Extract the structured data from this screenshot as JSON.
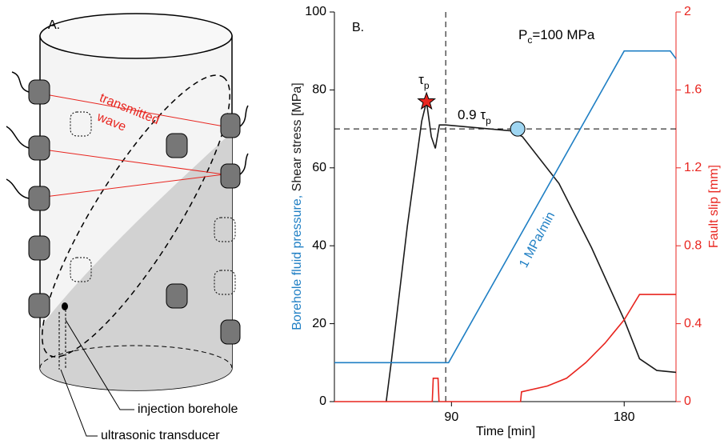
{
  "diagram": {
    "panel_label": "A.",
    "wave_label": [
      "transmitted",
      "wave"
    ],
    "borehole_label": "injection borehole",
    "transducer_label": "ultrasonic transducer"
  },
  "chart_data": {
    "type": "line",
    "panel_label": "B.",
    "x_label": "Time [min]",
    "y_label_parts": [
      {
        "text": "Borehole fluid pressure,",
        "color": "#1f7fc4"
      },
      {
        "text": "Shear stress [MPa]",
        "color": "#1a1a1a"
      }
    ],
    "y2_label": "Fault slip [mm]",
    "y2_color": "#e8251f",
    "xlim": [
      29,
      207
    ],
    "xticks": [
      90,
      180
    ],
    "ylim": [
      0,
      100
    ],
    "yticks": [
      0,
      20,
      40,
      60,
      80,
      100
    ],
    "y2lim": [
      0,
      2
    ],
    "y2ticks": [
      0,
      0.4,
      0.8,
      1.2,
      1.6,
      2
    ],
    "series": [
      {
        "name": "Shear stress",
        "color": "#1a1a1a",
        "x": [
          56,
          58.6,
          67,
          74.5,
          77,
          79.5,
          81.6,
          83.7,
          87,
          121,
          127,
          146,
          163,
          180,
          188,
          197,
          207
        ],
        "values": [
          0,
          10,
          45,
          72,
          77,
          68,
          65,
          71,
          71,
          69.5,
          68,
          56,
          39.5,
          21,
          11,
          8,
          7.5
        ]
      },
      {
        "name": "Borehole fluid pressure",
        "color": "#1f7fc4",
        "x": [
          29,
          88.5,
          180,
          204,
          207
        ],
        "values": [
          10,
          10,
          90,
          90,
          88
        ]
      },
      {
        "name": "Fault slip",
        "color": "#e8251f",
        "axis": "y2",
        "x": [
          29,
          80,
          80.5,
          83,
          83.5,
          126,
          126.5,
          140,
          150,
          160,
          170,
          180,
          188,
          207
        ],
        "values": [
          0,
          0,
          0.12,
          0.12,
          0,
          0,
          0.05,
          0.08,
          0.12,
          0.2,
          0.3,
          0.42,
          0.55,
          0.55
        ]
      }
    ],
    "reference_lines": {
      "y": 70,
      "x": 87
    },
    "peak_marker": {
      "x": 77,
      "y": 77,
      "label": [
        "τ",
        "p"
      ]
    },
    "threshold_marker": {
      "x": 124.5,
      "y": 70,
      "label": [
        "0.9 τ",
        "p"
      ]
    },
    "rate_label": "1 MPa/min",
    "confining_label": [
      "P",
      "c",
      "=100 MPa"
    ]
  }
}
